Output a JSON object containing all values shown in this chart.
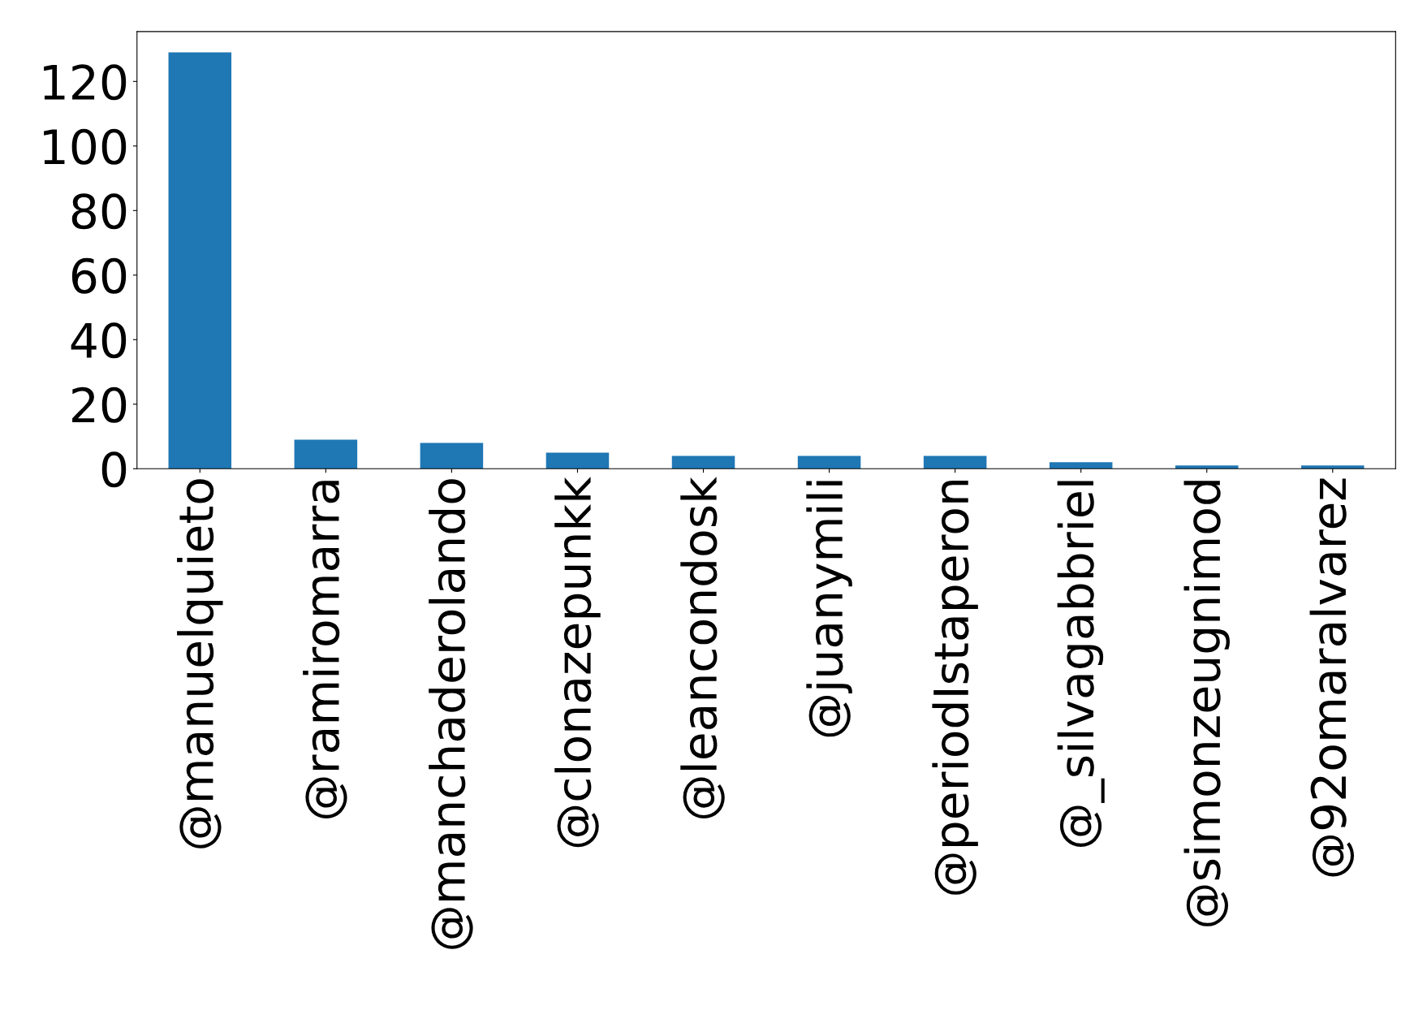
{
  "chart_data": {
    "type": "bar",
    "categories": [
      "@manuelquieto",
      "@ramiromarra",
      "@manchaderolando",
      "@clonazepunkk",
      "@leancondosk",
      "@juanymili",
      "@periodIstaperon",
      "@_silvagabbriel",
      "@simonzeugnimod",
      "@92omaralvarez"
    ],
    "values": [
      129,
      9,
      8,
      5,
      4,
      4,
      4,
      2,
      1,
      1
    ],
    "color": "#1f77b4",
    "ylim": [
      0,
      135.45
    ],
    "yticks": [
      0,
      20,
      40,
      60,
      80,
      100,
      120
    ],
    "grid": false,
    "legend": false
  }
}
